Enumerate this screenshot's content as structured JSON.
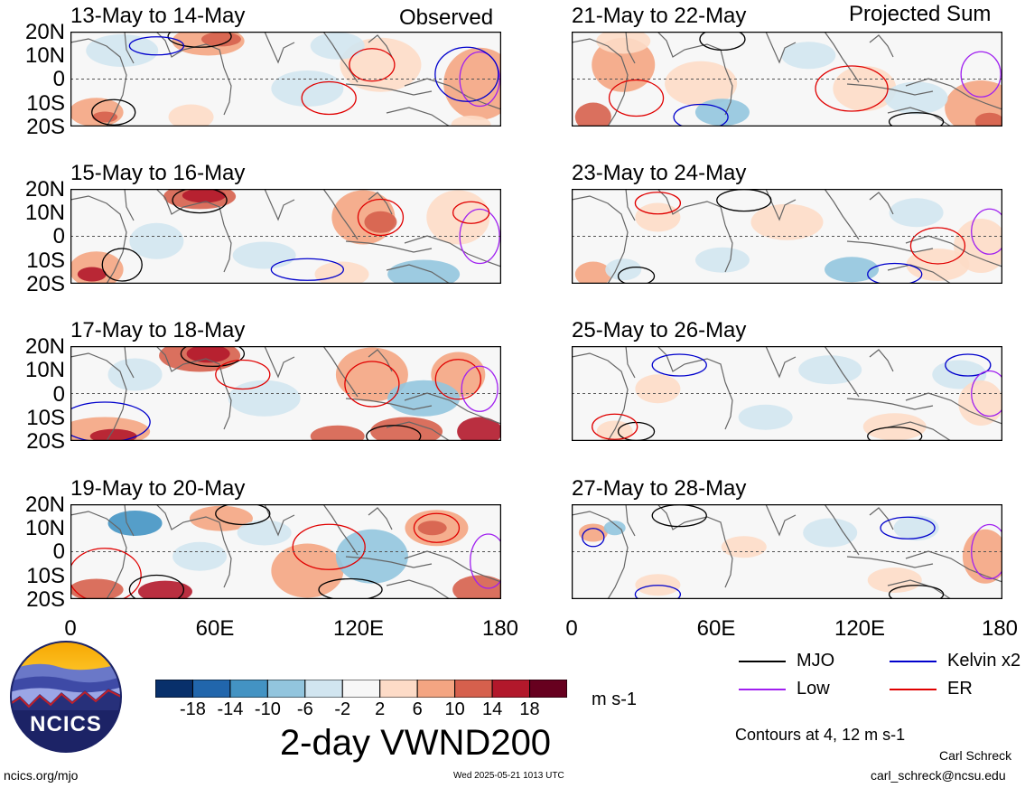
{
  "header": {
    "left_label": "Observed",
    "right_label": "Projected Sum"
  },
  "panels": [
    {
      "title": "13-May to 14-May",
      "column": "left"
    },
    {
      "title": "15-May to 16-May",
      "column": "left"
    },
    {
      "title": "17-May to 18-May",
      "column": "left"
    },
    {
      "title": "19-May to 20-May",
      "column": "left"
    },
    {
      "title": "21-May to 22-May",
      "column": "right"
    },
    {
      "title": "23-May to 24-May",
      "column": "right"
    },
    {
      "title": "25-May to 26-May",
      "column": "right"
    },
    {
      "title": "27-May to 28-May",
      "column": "right"
    }
  ],
  "axes": {
    "lat_ticks": [
      "20N",
      "10N",
      "0",
      "10S",
      "20S"
    ],
    "lon_ticks": [
      "0",
      "60E",
      "120E",
      "180"
    ]
  },
  "colorbar": {
    "ticks": [
      "-18",
      "-14",
      "-10",
      "-6",
      "-2",
      "2",
      "6",
      "10",
      "14",
      "18"
    ],
    "colors": [
      "#08306b",
      "#2166ac",
      "#4393c3",
      "#92c5de",
      "#d1e5f0",
      "#f7f7f7",
      "#fddbc7",
      "#f4a582",
      "#d6604d",
      "#b2182b",
      "#67001f"
    ],
    "units": "m s-1"
  },
  "title": "2-day VWND200",
  "legend": [
    {
      "label": "MJO",
      "color": "#000000"
    },
    {
      "label": "Kelvin x2",
      "color": "#0000cc"
    },
    {
      "label": "Low",
      "color": "#a020f0"
    },
    {
      "label": "ER",
      "color": "#e00000"
    }
  ],
  "contour_note": "Contours at 4, 12 m s-1",
  "logo_text": "NCICS",
  "footer": {
    "url": "ncics.org/mjo",
    "timestamp": "Wed 2025-05-21 1013 UTC",
    "author": "Carl Schreck",
    "email": "carl_schreck@ncsu.edu"
  },
  "chart_data": {
    "type": "heatmap",
    "variable": "VWND200",
    "x_range": [
      0,
      180
    ],
    "y_range": [
      -20,
      20
    ],
    "units": "m s-1"
  }
}
